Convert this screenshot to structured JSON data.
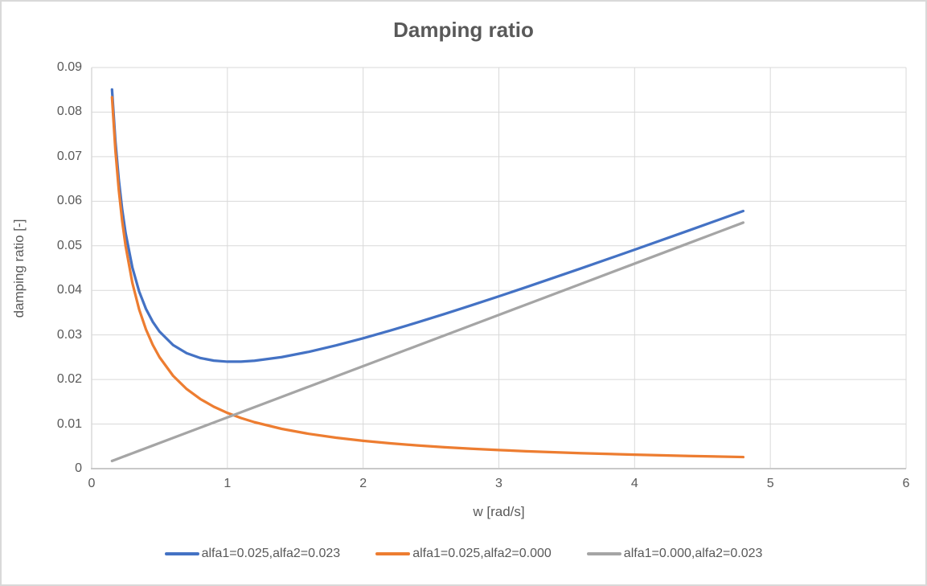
{
  "chart_data": {
    "type": "line",
    "title": "Damping ratio",
    "xlabel": "w [rad/s]",
    "ylabel": "damping ratio [-]",
    "xlim": [
      0,
      6
    ],
    "ylim": [
      0,
      0.09
    ],
    "grid": true,
    "legend_position": "bottom",
    "x_ticks": [
      0,
      1,
      2,
      3,
      4,
      5,
      6
    ],
    "x_tick_labels": [
      "0",
      "1",
      "2",
      "3",
      "4",
      "5",
      "6"
    ],
    "y_ticks": [
      0,
      0.01,
      0.02,
      0.03,
      0.04,
      0.05,
      0.06,
      0.07,
      0.08,
      0.09
    ],
    "y_tick_labels": [
      "0",
      "0.01",
      "0.02",
      "0.03",
      "0.04",
      "0.05",
      "0.06",
      "0.07",
      "0.08",
      "0.09"
    ],
    "colors": {
      "text": "#595959",
      "grid": "#d9d9d9",
      "axis": "#c9c9c9",
      "frame_border": "#d9d9d9"
    },
    "x": [
      0.15,
      0.175,
      0.2,
      0.225,
      0.25,
      0.3,
      0.35,
      0.4,
      0.45,
      0.5,
      0.6,
      0.7,
      0.8,
      0.9,
      1.0,
      1.1,
      1.2,
      1.4,
      1.6,
      1.8,
      2.0,
      2.2,
      2.4,
      2.6,
      2.8,
      3.0,
      3.2,
      3.6,
      4.0,
      4.4,
      4.8
    ],
    "series": [
      {
        "name": "alfa1=0.025,alfa2=0.023",
        "color": "#4472C4",
        "values": [
          0.085058,
          0.073441,
          0.0648,
          0.058143,
          0.052875,
          0.045117,
          0.039739,
          0.03585,
          0.032953,
          0.03075,
          0.027733,
          0.025907,
          0.024825,
          0.024239,
          0.024,
          0.024014,
          0.024217,
          0.025029,
          0.026213,
          0.027644,
          0.02925,
          0.030982,
          0.032808,
          0.034708,
          0.036664,
          0.038667,
          0.040706,
          0.044872,
          0.049125,
          0.053441,
          0.057804
        ]
      },
      {
        "name": "alfa1=0.025,alfa2=0.000",
        "color": "#ED7D31",
        "values": [
          0.083333,
          0.071429,
          0.0625,
          0.055556,
          0.05,
          0.041667,
          0.035714,
          0.03125,
          0.027778,
          0.025,
          0.020833,
          0.017857,
          0.015625,
          0.013889,
          0.0125,
          0.011364,
          0.010417,
          0.008929,
          0.007813,
          0.006944,
          0.00625,
          0.005682,
          0.005208,
          0.004808,
          0.004464,
          0.004167,
          0.003906,
          0.003472,
          0.003125,
          0.002841,
          0.002604
        ]
      },
      {
        "name": "alfa1=0.000,alfa2=0.023",
        "color": "#A5A5A5",
        "values": [
          0.001725,
          0.002013,
          0.0023,
          0.002588,
          0.002875,
          0.00345,
          0.004025,
          0.0046,
          0.005175,
          0.00575,
          0.0069,
          0.00805,
          0.0092,
          0.01035,
          0.0115,
          0.01265,
          0.0138,
          0.0161,
          0.0184,
          0.0207,
          0.023,
          0.0253,
          0.0276,
          0.0299,
          0.0322,
          0.0345,
          0.0368,
          0.0414,
          0.046,
          0.0506,
          0.0552
        ]
      }
    ]
  }
}
